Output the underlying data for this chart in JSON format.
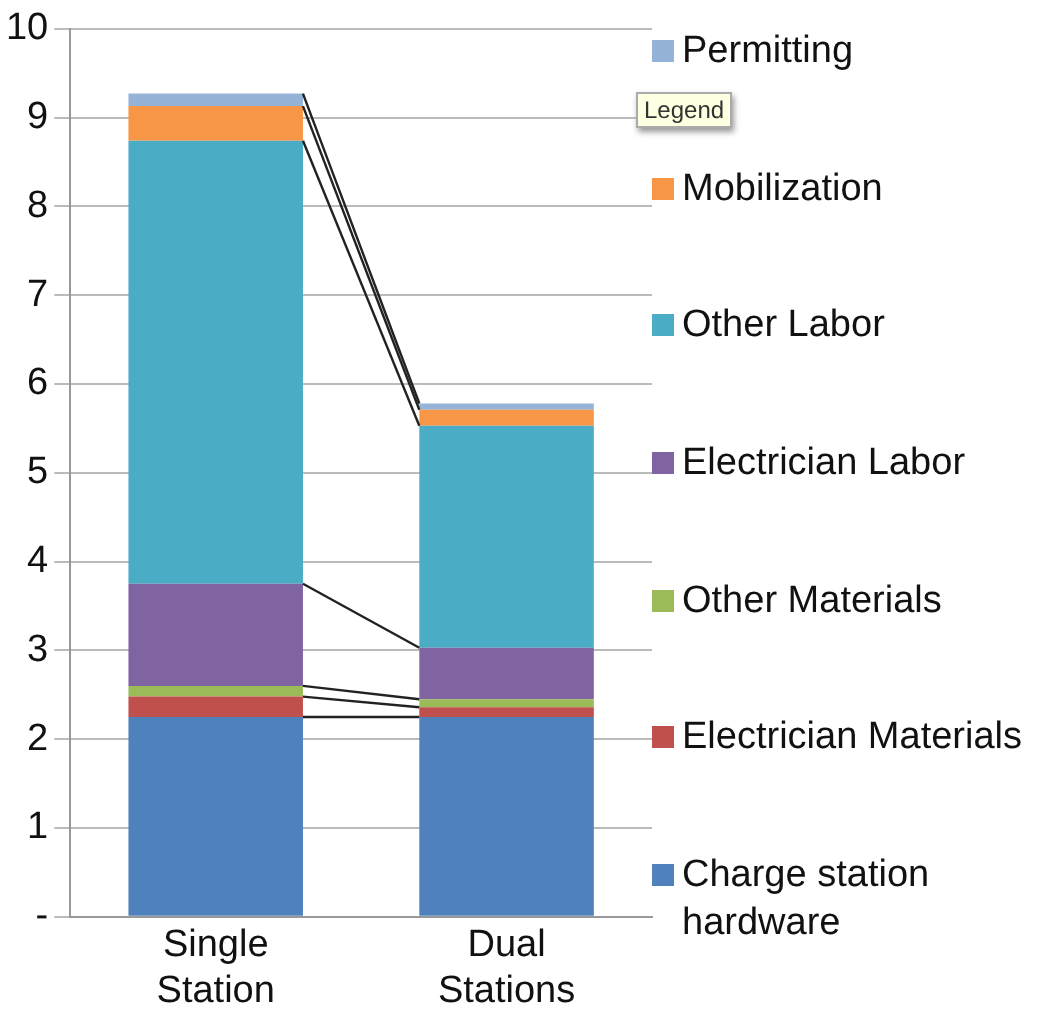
{
  "chart_data": {
    "type": "bar",
    "stacked": true,
    "categories": [
      "Single Station",
      "Dual Stations"
    ],
    "series": [
      {
        "name": "Charge station hardware",
        "color": "#4f81bd",
        "values": [
          2.25,
          2.25
        ]
      },
      {
        "name": "Electrician Materials",
        "color": "#c0504d",
        "values": [
          0.23,
          0.11
        ]
      },
      {
        "name": "Other Materials",
        "color": "#9bbb59",
        "values": [
          0.12,
          0.09
        ]
      },
      {
        "name": "Electrician Labor",
        "color": "#8064a2",
        "values": [
          1.15,
          0.58
        ]
      },
      {
        "name": "Other Labor",
        "color": "#4bacc6",
        "values": [
          4.99,
          2.5
        ]
      },
      {
        "name": "Mobilization",
        "color": "#f79646",
        "values": [
          0.39,
          0.18
        ]
      },
      {
        "name": "Permitting",
        "color": "#95b3d7",
        "values": [
          0.14,
          0.07
        ]
      }
    ],
    "ylim": [
      0,
      10
    ],
    "yticks": [
      {
        "value": 0,
        "label": "-"
      },
      1,
      2,
      3,
      4,
      5,
      6,
      7,
      8,
      9,
      10
    ],
    "grid": "y",
    "legend": "right",
    "annotations": [
      "Legend"
    ]
  }
}
